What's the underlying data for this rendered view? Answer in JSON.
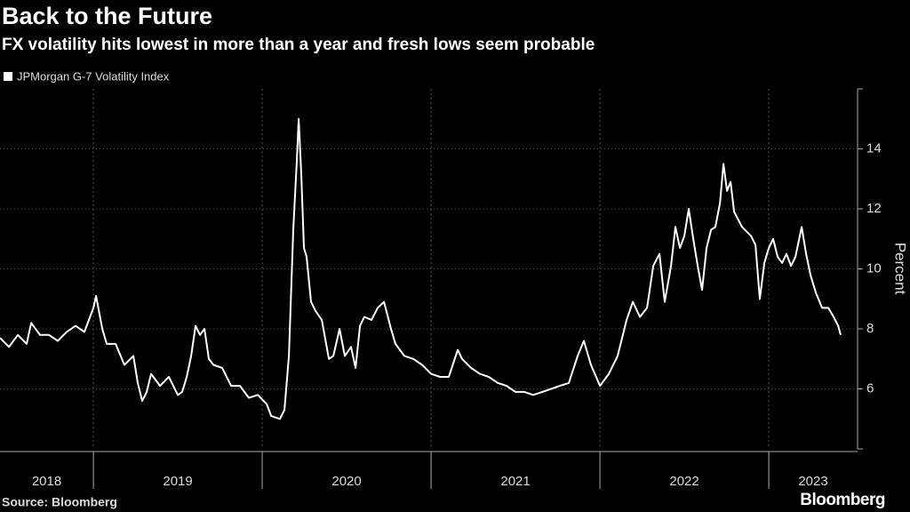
{
  "chart_data": {
    "type": "line",
    "title": "Back to the Future",
    "subtitle": "FX volatility hits lowest in more than a year and fresh lows seem probable",
    "y_label": "Percent",
    "source": "Source: Bloomberg",
    "logo": "Bloomberg",
    "xlim": [
      2018.447,
      2023.526
    ],
    "xticks": [
      2019,
      2020,
      2021,
      2022,
      2023
    ],
    "x_labels": [
      "2018",
      "2019",
      "2020",
      "2021",
      "2022",
      "2023"
    ],
    "ylim": [
      4,
      16
    ],
    "yticks": [
      6,
      8,
      10,
      12,
      14
    ],
    "grid": true,
    "x": [
      2018.447,
      2018.5,
      2018.553,
      2018.605,
      2018.632,
      2018.684,
      2018.737,
      2018.789,
      2018.842,
      2018.895,
      2018.947,
      2019.0,
      2019.016,
      2019.053,
      2019.079,
      2019.132,
      2019.184,
      2019.237,
      2019.263,
      2019.289,
      2019.316,
      2019.342,
      2019.395,
      2019.447,
      2019.5,
      2019.526,
      2019.553,
      2019.579,
      2019.605,
      2019.632,
      2019.658,
      2019.684,
      2019.711,
      2019.763,
      2019.816,
      2019.868,
      2019.921,
      2019.974,
      2020.026,
      2020.053,
      2020.105,
      2020.132,
      2020.158,
      2020.184,
      2020.205,
      2020.216,
      2020.232,
      2020.247,
      2020.263,
      2020.289,
      2020.316,
      2020.353,
      2020.395,
      2020.421,
      2020.458,
      2020.489,
      2020.526,
      2020.553,
      2020.579,
      2020.605,
      2020.647,
      2020.684,
      2020.721,
      2020.763,
      2020.789,
      2020.842,
      2020.895,
      2020.947,
      2021.0,
      2021.053,
      2021.105,
      2021.158,
      2021.184,
      2021.237,
      2021.289,
      2021.342,
      2021.395,
      2021.447,
      2021.5,
      2021.553,
      2021.605,
      2021.658,
      2021.711,
      2021.763,
      2021.816,
      2021.868,
      2021.905,
      2021.947,
      2022.0,
      2022.053,
      2022.105,
      2022.158,
      2022.195,
      2022.237,
      2022.279,
      2022.316,
      2022.353,
      2022.384,
      2022.421,
      2022.447,
      2022.474,
      2022.5,
      2022.526,
      2022.553,
      2022.579,
      2022.605,
      2022.632,
      2022.658,
      2022.684,
      2022.711,
      2022.732,
      2022.753,
      2022.774,
      2022.795,
      2022.842,
      2022.895,
      2022.921,
      2022.947,
      2022.974,
      2023.0,
      2023.026,
      2023.053,
      2023.079,
      2023.105,
      2023.132,
      2023.158,
      2023.195,
      2023.221,
      2023.247,
      2023.279,
      2023.316,
      2023.353,
      2023.384,
      2023.411,
      2023.426
    ],
    "series": [
      {
        "name": "JPMorgan G-7 Volatility Index",
        "color": "#ffffff",
        "values": [
          7.7,
          7.4,
          7.8,
          7.5,
          8.2,
          7.8,
          7.8,
          7.6,
          7.9,
          8.1,
          7.9,
          8.7,
          9.1,
          8.0,
          7.5,
          7.5,
          6.8,
          7.1,
          6.2,
          5.6,
          5.9,
          6.5,
          6.1,
          6.4,
          5.8,
          5.9,
          6.4,
          7.1,
          8.1,
          7.8,
          8.0,
          7.0,
          6.8,
          6.7,
          6.1,
          6.1,
          5.7,
          5.8,
          5.5,
          5.1,
          5.0,
          5.3,
          7.1,
          11.3,
          13.6,
          15.0,
          13.1,
          10.7,
          10.4,
          8.9,
          8.6,
          8.3,
          7.0,
          7.1,
          8.0,
          7.1,
          7.4,
          6.7,
          8.1,
          8.4,
          8.3,
          8.7,
          8.9,
          8.0,
          7.5,
          7.1,
          7.0,
          6.8,
          6.5,
          6.4,
          6.4,
          7.3,
          7.0,
          6.7,
          6.5,
          6.4,
          6.2,
          6.1,
          5.9,
          5.9,
          5.8,
          5.9,
          6.0,
          6.1,
          6.2,
          7.1,
          7.6,
          6.8,
          6.1,
          6.5,
          7.1,
          8.3,
          8.9,
          8.4,
          8.7,
          10.1,
          10.5,
          8.9,
          10.1,
          11.4,
          10.7,
          11.1,
          12.0,
          11.0,
          10.1,
          9.3,
          10.7,
          11.3,
          11.4,
          12.2,
          13.5,
          12.6,
          12.9,
          11.9,
          11.4,
          11.1,
          10.8,
          9.0,
          10.2,
          10.7,
          11.0,
          10.4,
          10.2,
          10.5,
          10.1,
          10.4,
          11.4,
          10.5,
          9.8,
          9.2,
          8.7,
          8.7,
          8.4,
          8.1,
          7.8
        ]
      }
    ]
  }
}
